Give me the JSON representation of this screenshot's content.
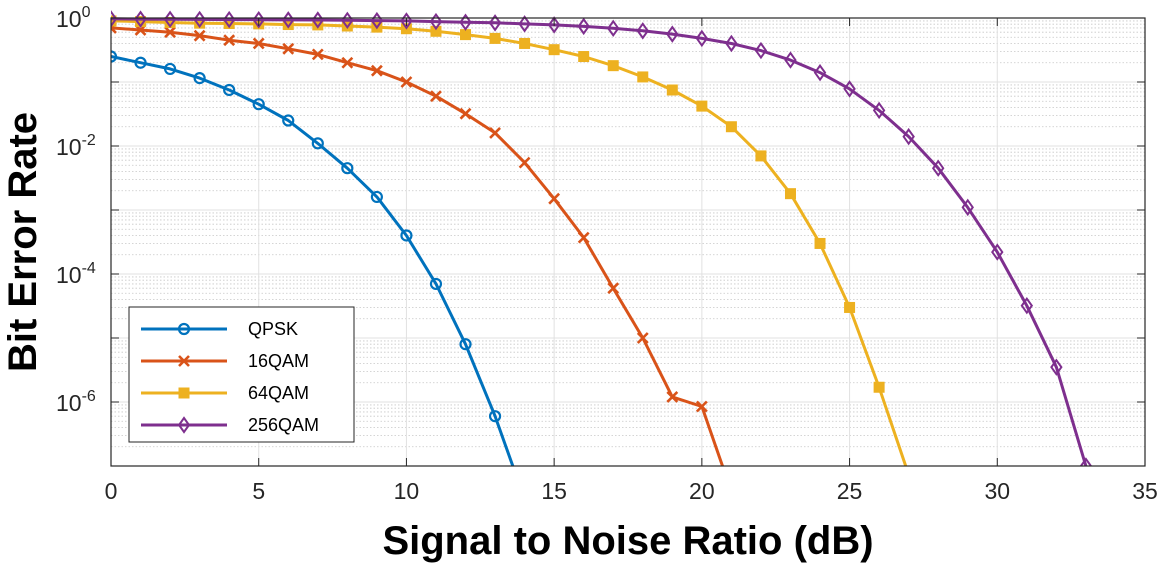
{
  "chart_data": {
    "type": "line",
    "title": "",
    "xlabel": "Signal to Noise Ratio (dB)",
    "ylabel": "Bit Error Rate",
    "xlim": [
      0,
      35
    ],
    "ylim": [
      1e-07,
      1
    ],
    "yscale": "log",
    "grid": true,
    "minor_grid": true,
    "legend_position": "bottom-left",
    "x_ticks": [
      {
        "value": 0,
        "label": "0"
      },
      {
        "value": 5,
        "label": "5"
      },
      {
        "value": 10,
        "label": "10"
      },
      {
        "value": 15,
        "label": "15"
      },
      {
        "value": 20,
        "label": "20"
      },
      {
        "value": 25,
        "label": "25"
      },
      {
        "value": 30,
        "label": "30"
      },
      {
        "value": 35,
        "label": "35"
      }
    ],
    "y_ticks": [
      {
        "value": 1,
        "base": "10",
        "exp": "0"
      },
      {
        "value": 0.01,
        "base": "10",
        "exp": "-2"
      },
      {
        "value": 0.0001,
        "base": "10",
        "exp": "-4"
      },
      {
        "value": 1e-06,
        "base": "10",
        "exp": "-6"
      }
    ],
    "series": [
      {
        "name": "QPSK",
        "color": "#0072BD",
        "marker": "circle",
        "x": [
          0,
          1,
          2,
          3,
          4,
          5,
          6,
          7,
          8,
          9,
          10,
          11,
          12,
          13,
          13.6
        ],
        "y": [
          0.25,
          0.2,
          0.16,
          0.115,
          0.075,
          0.045,
          0.025,
          0.011,
          0.0045,
          0.0016,
          0.0004,
          7e-05,
          8e-06,
          6e-07,
          1e-07
        ]
      },
      {
        "name": "16QAM",
        "color": "#D95319",
        "marker": "x",
        "x": [
          0,
          1,
          2,
          3,
          4,
          5,
          6,
          7,
          8,
          9,
          10,
          11,
          12,
          13,
          14,
          15,
          16,
          17,
          18,
          19,
          20,
          20.7
        ],
        "y": [
          0.7,
          0.65,
          0.6,
          0.53,
          0.45,
          0.4,
          0.33,
          0.27,
          0.2,
          0.15,
          0.1,
          0.06,
          0.032,
          0.016,
          0.0055,
          0.0015,
          0.00037,
          6e-05,
          1e-05,
          1.2e-06,
          8.5e-07,
          1e-07
        ]
      },
      {
        "name": "64QAM",
        "color": "#EDB120",
        "marker": "square",
        "x": [
          0,
          1,
          2,
          3,
          4,
          5,
          6,
          7,
          8,
          9,
          10,
          11,
          12,
          13,
          14,
          15,
          16,
          17,
          18,
          19,
          20,
          21,
          22,
          23,
          24,
          25,
          26,
          26.9
        ],
        "y": [
          0.9,
          0.88,
          0.85,
          0.83,
          0.82,
          0.81,
          0.79,
          0.78,
          0.75,
          0.72,
          0.68,
          0.62,
          0.55,
          0.48,
          0.4,
          0.32,
          0.25,
          0.18,
          0.12,
          0.075,
          0.042,
          0.02,
          0.007,
          0.0018,
          0.0003,
          3e-05,
          1.7e-06,
          1e-07
        ]
      },
      {
        "name": "256QAM",
        "color": "#7E2F8E",
        "marker": "diamond",
        "x": [
          0,
          1,
          2,
          3,
          4,
          5,
          6,
          7,
          8,
          9,
          10,
          11,
          12,
          13,
          14,
          15,
          16,
          17,
          18,
          19,
          20,
          21,
          22,
          23,
          24,
          25,
          26,
          27,
          28,
          29,
          30,
          31,
          32,
          33
        ],
        "y": [
          0.97,
          0.96,
          0.955,
          0.95,
          0.945,
          0.94,
          0.935,
          0.93,
          0.92,
          0.91,
          0.9,
          0.88,
          0.86,
          0.84,
          0.81,
          0.78,
          0.74,
          0.69,
          0.63,
          0.56,
          0.48,
          0.4,
          0.31,
          0.22,
          0.14,
          0.078,
          0.036,
          0.014,
          0.0045,
          0.0011,
          0.00022,
          3.2e-05,
          3.5e-06,
          1e-07
        ]
      }
    ]
  }
}
